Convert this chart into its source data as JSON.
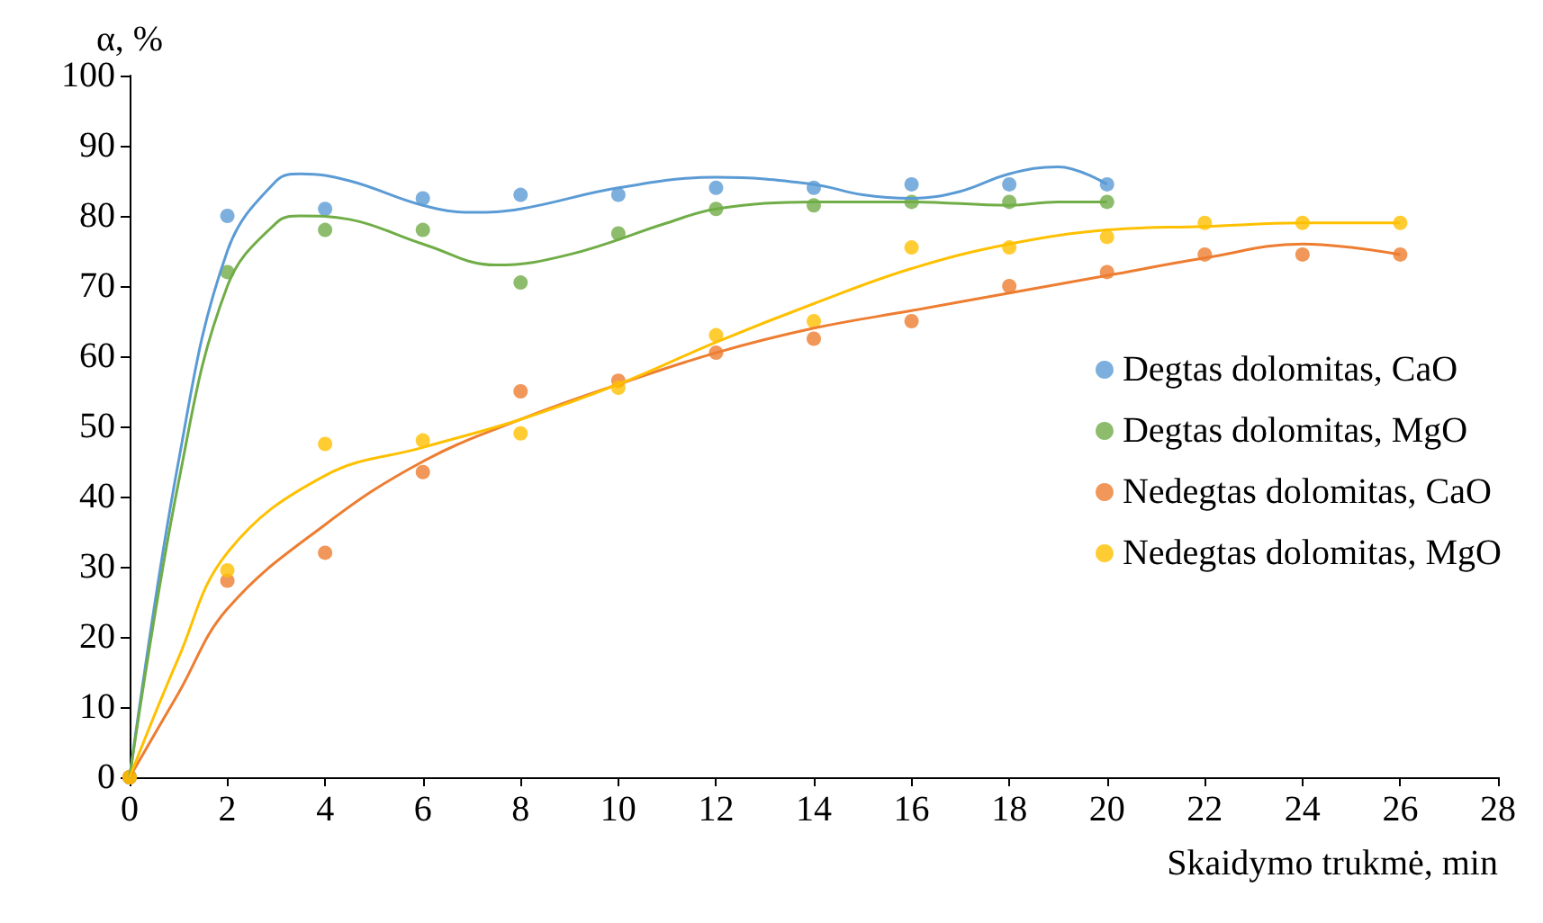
{
  "chart_data": {
    "type": "scatter",
    "xlabel": "Skaidymo trukmė, min",
    "ylabel": "α, %",
    "xlim": [
      0,
      28
    ],
    "xticks": [
      0,
      2,
      4,
      6,
      8,
      10,
      12,
      14,
      16,
      18,
      20,
      22,
      24,
      26,
      28
    ],
    "ylim": [
      0,
      100
    ],
    "yticks": [
      0,
      10,
      20,
      30,
      40,
      50,
      60,
      70,
      80,
      90,
      100
    ],
    "grid": false,
    "legend": "right",
    "series": [
      {
        "name": "Degtas dolomitas, CaO",
        "marker": "circle",
        "color": "#5b9bd5",
        "x": [
          0,
          2,
          4,
          6,
          8,
          10,
          12,
          14,
          16,
          18,
          20
        ],
        "values": [
          0,
          80,
          81,
          82.5,
          83,
          83,
          84,
          84,
          84.5,
          84.5,
          84.5
        ]
      },
      {
        "name": "Degtas dolomitas, MgO",
        "marker": "circle",
        "color": "#70ad47",
        "x": [
          0,
          2,
          4,
          6,
          8,
          10,
          12,
          14,
          16,
          18,
          20
        ],
        "values": [
          0,
          72,
          78,
          78,
          70.5,
          77.5,
          81,
          81.5,
          82,
          82,
          82
        ]
      },
      {
        "name": "Nedegtas dolomitas, CaO",
        "marker": "circle",
        "color": "#ed7d31",
        "x": [
          0,
          2,
          4,
          6,
          8,
          10,
          12,
          14,
          16,
          18,
          20,
          22,
          24,
          26
        ],
        "values": [
          0,
          28,
          32,
          43.5,
          55,
          56.5,
          60.5,
          62.5,
          65,
          70,
          72,
          74.5,
          74.5,
          74.5
        ]
      },
      {
        "name": "Nedegtas dolomitas, MgO",
        "marker": "circle",
        "color": "#ffc000",
        "x": [
          0,
          2,
          4,
          6,
          8,
          10,
          12,
          14,
          16,
          18,
          20,
          22,
          24,
          26
        ],
        "values": [
          0,
          29.5,
          47.5,
          48,
          49,
          55.5,
          63,
          65,
          75.5,
          75.5,
          77,
          79,
          79,
          79
        ]
      },
      {
        "type": "line",
        "marker": "none",
        "color": "#5b9bd5",
        "x": [
          0,
          1,
          2,
          3,
          3.5,
          4.5,
          6,
          7,
          8,
          10,
          12,
          14,
          15,
          16,
          17,
          18,
          19,
          20
        ],
        "values": [
          0,
          45,
          75,
          85,
          86,
          85,
          81.5,
          80.5,
          81,
          84,
          85.5,
          84.5,
          83,
          82.5,
          83.5,
          86,
          87,
          84.5
        ]
      },
      {
        "type": "line",
        "marker": "none",
        "color": "#70ad47",
        "x": [
          0,
          1,
          2,
          3,
          3.5,
          4.5,
          6,
          7.5,
          9,
          11,
          12,
          14,
          16,
          18,
          19,
          20
        ],
        "values": [
          0,
          42,
          70,
          79,
          80,
          79.5,
          76,
          73,
          74.5,
          79,
          81,
          82,
          82,
          81.5,
          82,
          82
        ]
      },
      {
        "type": "line",
        "marker": "none",
        "color": "#ed7d31",
        "x": [
          0,
          1,
          2,
          4,
          6,
          8,
          10,
          12,
          14,
          16,
          18,
          20,
          22,
          24,
          25,
          26
        ],
        "values": [
          0,
          12,
          24,
          36,
          45,
          51,
          56,
          60.5,
          64,
          66.5,
          69,
          71.5,
          74,
          76,
          75.5,
          74.5
        ]
      },
      {
        "type": "line",
        "marker": "none",
        "color": "#ffc000",
        "x": [
          0,
          1,
          2,
          4,
          6,
          8,
          10,
          12,
          14,
          16,
          18,
          20,
          22,
          24,
          26
        ],
        "values": [
          0,
          17,
          32,
          43,
          47,
          51,
          56,
          62,
          67.5,
          72.5,
          76,
          78,
          78.5,
          79,
          79
        ]
      }
    ]
  }
}
